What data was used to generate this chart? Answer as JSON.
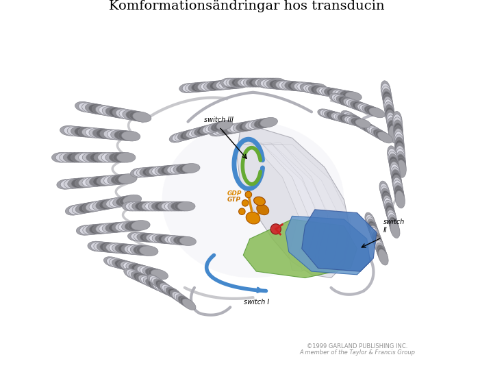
{
  "title": "Komformationsändringar hos transducin",
  "title_fontsize": 14,
  "bg_color": "#ffffff",
  "copyright_line1": "©1999 GARLAND PUBLISHING INC.",
  "copyright_line2": "A member of the Taylor & Francis Group",
  "fig_width": 7.2,
  "fig_height": 5.4,
  "dpi": 100,
  "protein_color": "#c8c8cc",
  "protein_edge": "#888890",
  "protein_light": "#e0e0e4",
  "protein_dark": "#a0a0a8",
  "helix_color": "#c0c0c8",
  "helix_light": "#d8d8e0",
  "helix_dark": "#989898",
  "sheet_blue": "#6699cc",
  "sheet_green": "#88bb55",
  "loop_blue": "#4488cc",
  "loop_green": "#66aa33",
  "gdp_color": "#dd8800",
  "gtp_color": "#cc7700",
  "red_color": "#cc3333",
  "label_color": "#000000",
  "label_fontsize": 7,
  "copyright_color": "#909090",
  "copyright_fontsize": 6
}
